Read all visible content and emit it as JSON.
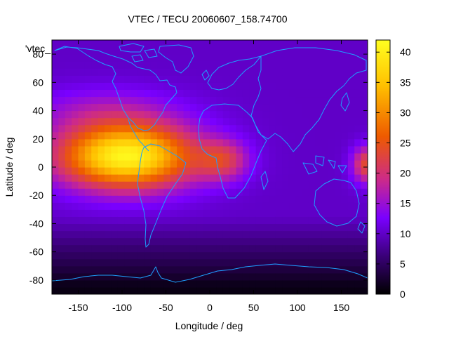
{
  "chart_data": {
    "type": "heatmap",
    "title": "VTEC / TECU 20060607_158.74700",
    "xlabel": "Longitude / deg",
    "ylabel": "Latitude / deg",
    "xlim": [
      -180,
      180
    ],
    "ylim": [
      -90,
      90
    ],
    "x_ticks": [
      -150,
      -100,
      -50,
      0,
      50,
      100,
      150
    ],
    "y_ticks": [
      -80,
      -60,
      -40,
      -20,
      0,
      20,
      40,
      60,
      80
    ],
    "colorbar": {
      "range": [
        0,
        42
      ],
      "ticks": [
        0,
        5,
        10,
        15,
        20,
        25,
        30,
        35,
        40
      ],
      "stops": [
        "#000000",
        "#3a0078",
        "#7a00ff",
        "#cc2a8a",
        "#ee5a00",
        "#ffc000",
        "#ffff20"
      ]
    },
    "key_label": "'vtec_",
    "overlay": "coastlines",
    "coastline_color": "#1e9fff",
    "grid": false,
    "features": {
      "background_level": 10,
      "peak": {
        "lon": -95,
        "lat": 8,
        "value": 41
      },
      "secondary_peak": {
        "lon": 15,
        "lat": 5,
        "value": 20
      },
      "east_edge_peak": {
        "lon": 180,
        "lat": 2,
        "value": 24
      },
      "south_polar_minimum": {
        "lat": -85,
        "value": 1
      }
    }
  }
}
